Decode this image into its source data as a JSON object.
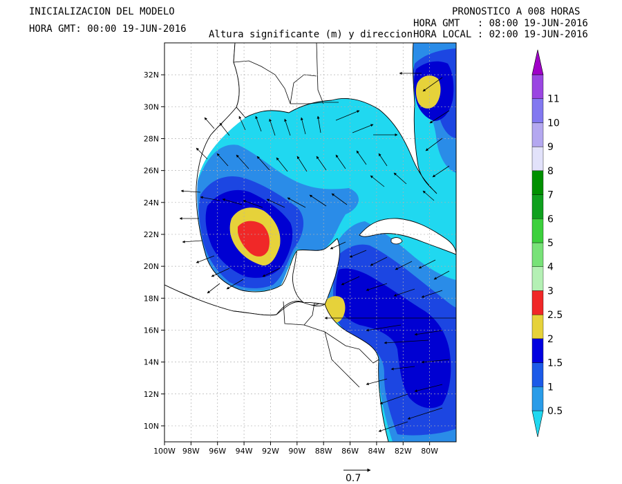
{
  "header": {
    "init_title": "INICIALIZACION DEL MODELO",
    "init_time": "HORA GMT: 00:00 19-JUN-2016",
    "forecast_title": "PRONOSTICO A 008 HORAS",
    "forecast_gmt": "HORA GMT   : 08:00 19-JUN-2016",
    "forecast_local": "HORA LOCAL : 02:00 19-JUN-2016",
    "map_title": "Altura significante (m) y direccion"
  },
  "map": {
    "lon_range": [
      -100,
      -78
    ],
    "lat_range": [
      9,
      34
    ],
    "x_ticks": [
      "100W",
      "98W",
      "96W",
      "94W",
      "92W",
      "90W",
      "88W",
      "86W",
      "84W",
      "82W",
      "80W"
    ],
    "y_ticks": [
      "32N",
      "30N",
      "28N",
      "26N",
      "24N",
      "22N",
      "20N",
      "18N",
      "16N",
      "14N",
      "12N",
      "10N"
    ],
    "colors": {
      "land": "#ffffff",
      "coast": "#000000",
      "grid": "#b0b0b0",
      "lvl_0_5": "#20d8f0",
      "lvl_1": "#2a8ce8",
      "lvl_1_5": "#1c46e2",
      "lvl_2": "#0000d2",
      "lvl_2_5": "#e6d23a",
      "lvl_3": "#f02828"
    }
  },
  "colorbar": {
    "labels": [
      "0.5",
      "1",
      "1.5",
      "2",
      "2.5",
      "3",
      "4",
      "5",
      "6",
      "7",
      "8",
      "9",
      "10",
      "11"
    ],
    "colors": [
      "#20d8f0",
      "#2a9ce8",
      "#1c5ae8",
      "#0000e0",
      "#e6d23a",
      "#f02828",
      "#b4f0b4",
      "#78e278",
      "#3cd03c",
      "#0fa01e",
      "#009000",
      "#e2e2fa",
      "#b4a8f0",
      "#8278f0",
      "#9a46e2",
      "#a000c8"
    ]
  },
  "vector_scale": {
    "label": "0.7"
  }
}
